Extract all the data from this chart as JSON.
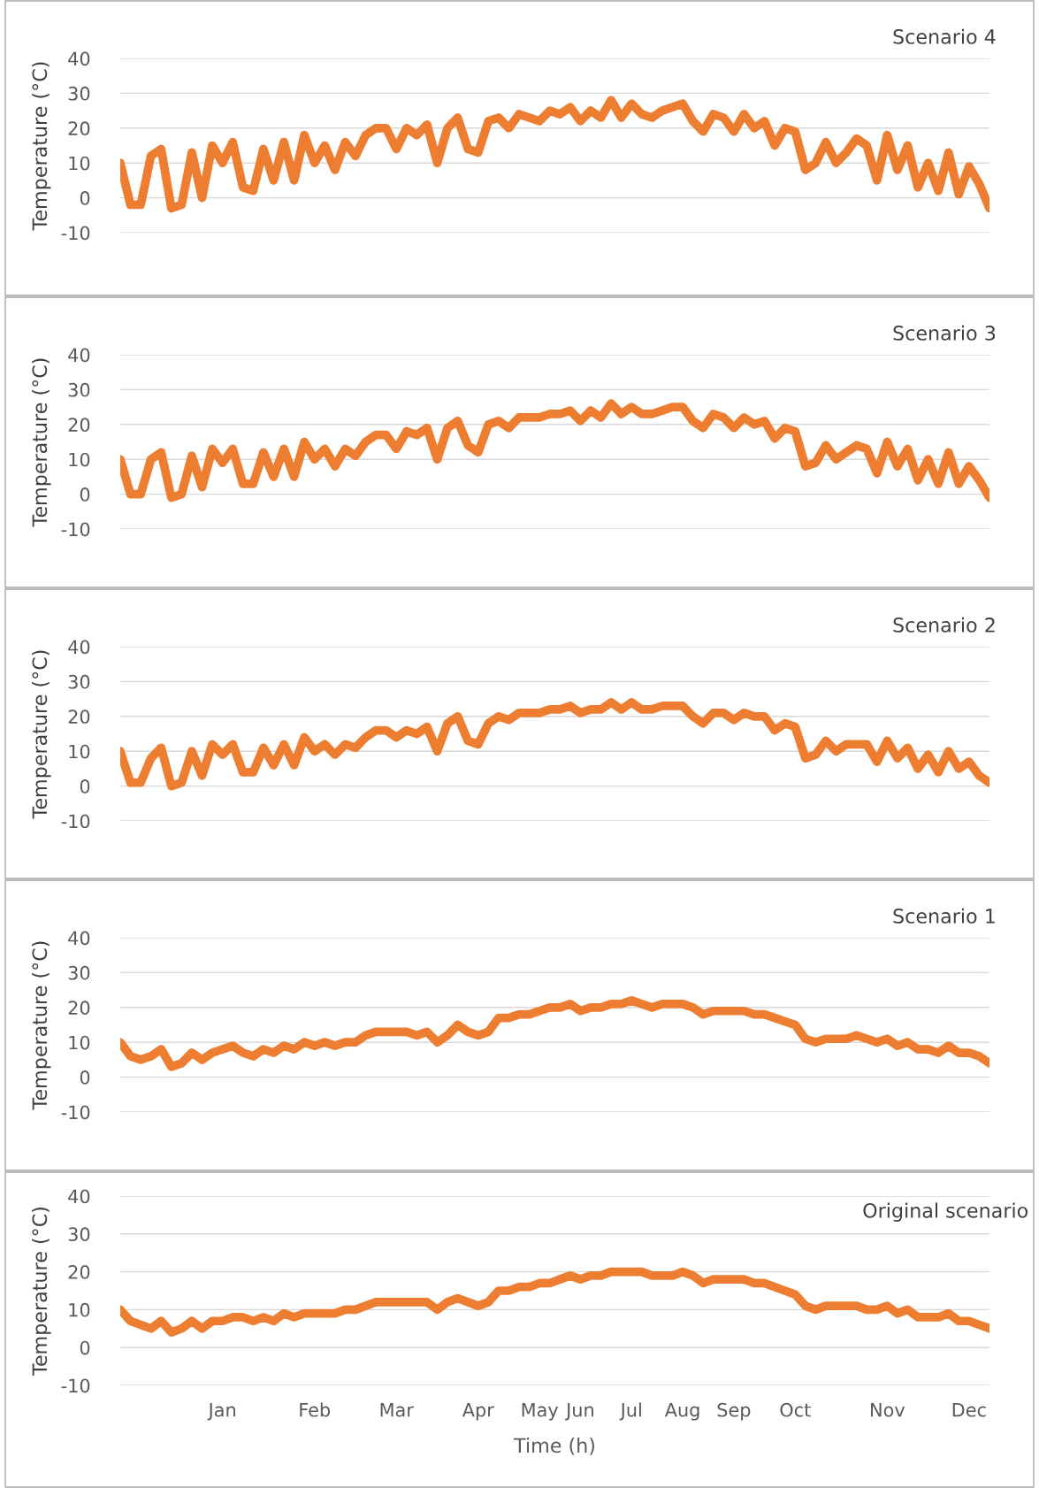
{
  "chart_data": [
    {
      "type": "line",
      "title": "Scenario 4",
      "ylabel": "Temperature (°C)",
      "ylim": [
        -10,
        40
      ],
      "yticks": [
        -10,
        0,
        10,
        20,
        30,
        40
      ],
      "grid": "y",
      "tick_labels": "y",
      "marker": "none",
      "line_style": "solid",
      "categories": [
        null,
        null,
        null,
        null,
        null,
        null,
        null,
        null,
        null,
        null,
        null,
        null,
        null,
        null,
        null,
        null,
        null,
        null,
        null,
        null,
        null,
        null,
        null,
        null,
        null,
        null,
        null,
        null,
        null,
        null,
        null,
        null,
        null,
        null,
        null,
        null,
        null,
        null,
        null,
        null,
        null,
        null,
        null,
        null,
        null,
        null,
        null,
        null,
        null,
        null,
        null,
        null,
        null,
        null,
        null,
        null,
        null,
        null,
        null,
        null,
        null,
        null,
        null,
        null,
        null,
        null,
        null,
        null,
        null,
        null,
        null,
        null,
        null,
        null,
        null,
        null,
        null,
        null,
        null,
        null,
        null,
        null,
        null,
        null,
        null,
        null
      ],
      "series": [
        {
          "color": "#ed7d31",
          "values": [
            10,
            -2,
            -2,
            12,
            14,
            -3,
            -2,
            13,
            0,
            15,
            10,
            16,
            3,
            2,
            14,
            5,
            16,
            5,
            18,
            10,
            15,
            8,
            16,
            12,
            18,
            20,
            20,
            14,
            20,
            18,
            21,
            10,
            20,
            23,
            14,
            13,
            22,
            23,
            20,
            24,
            23,
            22,
            25,
            24,
            26,
            22,
            25,
            23,
            28,
            23,
            27,
            24,
            23,
            25,
            26,
            27,
            22,
            19,
            24,
            23,
            19,
            24,
            20,
            22,
            15,
            20,
            19,
            8,
            10,
            16,
            10,
            13,
            17,
            15,
            5,
            18,
            8,
            15,
            3,
            10,
            2,
            13,
            1,
            9,
            4,
            -3
          ]
        }
      ]
    },
    {
      "type": "line",
      "title": "Scenario 3",
      "ylabel": "Temperature (°C)",
      "ylim": [
        -10,
        40
      ],
      "yticks": [
        -10,
        0,
        10,
        20,
        30,
        40
      ],
      "grid": "y",
      "tick_labels": "y",
      "marker": "none",
      "line_style": "solid",
      "categories": [
        null,
        null,
        null,
        null,
        null,
        null,
        null,
        null,
        null,
        null,
        null,
        null,
        null,
        null,
        null,
        null,
        null,
        null,
        null,
        null,
        null,
        null,
        null,
        null,
        null,
        null,
        null,
        null,
        null,
        null,
        null,
        null,
        null,
        null,
        null,
        null,
        null,
        null,
        null,
        null,
        null,
        null,
        null,
        null,
        null,
        null,
        null,
        null,
        null,
        null,
        null,
        null,
        null,
        null,
        null,
        null,
        null,
        null,
        null,
        null,
        null,
        null,
        null,
        null,
        null,
        null,
        null,
        null,
        null,
        null,
        null,
        null,
        null,
        null,
        null,
        null,
        null,
        null,
        null,
        null,
        null,
        null,
        null,
        null,
        null,
        null
      ],
      "series": [
        {
          "color": "#ed7d31",
          "values": [
            10,
            0,
            0,
            10,
            12,
            -1,
            0,
            11,
            2,
            13,
            9,
            13,
            3,
            3,
            12,
            5,
            13,
            5,
            15,
            10,
            13,
            8,
            13,
            11,
            15,
            17,
            17,
            13,
            18,
            17,
            19,
            10,
            19,
            21,
            14,
            12,
            20,
            21,
            19,
            22,
            22,
            22,
            23,
            23,
            24,
            21,
            24,
            22,
            26,
            23,
            25,
            23,
            23,
            24,
            25,
            25,
            21,
            19,
            23,
            22,
            19,
            22,
            20,
            21,
            16,
            19,
            18,
            8,
            9,
            14,
            10,
            12,
            14,
            13,
            6,
            15,
            8,
            13,
            4,
            10,
            3,
            12,
            3,
            8,
            4,
            -1
          ]
        }
      ]
    },
    {
      "type": "line",
      "title": "Scenario 2",
      "ylabel": "Temperature (°C)",
      "ylim": [
        -10,
        40
      ],
      "yticks": [
        -10,
        0,
        10,
        20,
        30,
        40
      ],
      "grid": "y",
      "tick_labels": "y",
      "marker": "none",
      "line_style": "solid",
      "categories": [
        null,
        null,
        null,
        null,
        null,
        null,
        null,
        null,
        null,
        null,
        null,
        null,
        null,
        null,
        null,
        null,
        null,
        null,
        null,
        null,
        null,
        null,
        null,
        null,
        null,
        null,
        null,
        null,
        null,
        null,
        null,
        null,
        null,
        null,
        null,
        null,
        null,
        null,
        null,
        null,
        null,
        null,
        null,
        null,
        null,
        null,
        null,
        null,
        null,
        null,
        null,
        null,
        null,
        null,
        null,
        null,
        null,
        null,
        null,
        null,
        null,
        null,
        null,
        null,
        null,
        null,
        null,
        null,
        null,
        null,
        null,
        null,
        null,
        null,
        null,
        null,
        null,
        null,
        null,
        null,
        null,
        null,
        null,
        null,
        null,
        null
      ],
      "series": [
        {
          "color": "#ed7d31",
          "values": [
            10,
            1,
            1,
            8,
            11,
            0,
            1,
            10,
            3,
            12,
            9,
            12,
            4,
            4,
            11,
            6,
            12,
            6,
            14,
            10,
            12,
            9,
            12,
            11,
            14,
            16,
            16,
            14,
            16,
            15,
            17,
            10,
            18,
            20,
            13,
            12,
            18,
            20,
            19,
            21,
            21,
            21,
            22,
            22,
            23,
            21,
            22,
            22,
            24,
            22,
            24,
            22,
            22,
            23,
            23,
            23,
            20,
            18,
            21,
            21,
            19,
            21,
            20,
            20,
            16,
            18,
            17,
            8,
            9,
            13,
            10,
            12,
            12,
            12,
            7,
            13,
            8,
            11,
            5,
            9,
            4,
            10,
            5,
            7,
            3,
            1
          ]
        }
      ]
    },
    {
      "type": "line",
      "title": "Scenario 1",
      "ylabel": "Temperature (°C)",
      "ylim": [
        -10,
        40
      ],
      "yticks": [
        -10,
        0,
        10,
        20,
        30,
        40
      ],
      "grid": "y",
      "tick_labels": "y",
      "marker": "none",
      "line_style": "solid",
      "categories": [
        null,
        null,
        null,
        null,
        null,
        null,
        null,
        null,
        null,
        null,
        null,
        null,
        null,
        null,
        null,
        null,
        null,
        null,
        null,
        null,
        null,
        null,
        null,
        null,
        null,
        null,
        null,
        null,
        null,
        null,
        null,
        null,
        null,
        null,
        null,
        null,
        null,
        null,
        null,
        null,
        null,
        null,
        null,
        null,
        null,
        null,
        null,
        null,
        null,
        null,
        null,
        null,
        null,
        null,
        null,
        null,
        null,
        null,
        null,
        null,
        null,
        null,
        null,
        null,
        null,
        null,
        null,
        null,
        null,
        null,
        null,
        null,
        null,
        null,
        null,
        null,
        null,
        null,
        null,
        null,
        null,
        null,
        null,
        null,
        null,
        null
      ],
      "series": [
        {
          "color": "#ed7d31",
          "values": [
            10,
            6,
            5,
            6,
            8,
            3,
            4,
            7,
            5,
            7,
            8,
            9,
            7,
            6,
            8,
            7,
            9,
            8,
            10,
            9,
            10,
            9,
            10,
            10,
            12,
            13,
            13,
            13,
            13,
            12,
            13,
            10,
            12,
            15,
            13,
            12,
            13,
            17,
            17,
            18,
            18,
            19,
            20,
            20,
            21,
            19,
            20,
            20,
            21,
            21,
            22,
            21,
            20,
            21,
            21,
            21,
            20,
            18,
            19,
            19,
            19,
            19,
            18,
            18,
            17,
            16,
            15,
            11,
            10,
            11,
            11,
            11,
            12,
            11,
            10,
            11,
            9,
            10,
            8,
            8,
            7,
            9,
            7,
            7,
            6,
            4
          ]
        }
      ]
    },
    {
      "type": "line",
      "title": "Original scenario",
      "ylabel": "Temperature (°C)",
      "xlabel": "Time (h)",
      "ylim": [
        -10,
        40
      ],
      "yticks": [
        -10,
        0,
        10,
        20,
        30,
        40
      ],
      "grid": "y",
      "marker": "none",
      "line_style": "solid",
      "categories": [
        null,
        null,
        null,
        null,
        null,
        null,
        null,
        null,
        null,
        null,
        "Jan",
        null,
        null,
        null,
        null,
        null,
        null,
        null,
        null,
        "Feb",
        null,
        null,
        null,
        null,
        null,
        null,
        null,
        "Mar",
        null,
        null,
        null,
        null,
        null,
        null,
        null,
        "Apr",
        null,
        null,
        null,
        null,
        null,
        "May",
        null,
        null,
        null,
        "Jun",
        null,
        null,
        null,
        null,
        "Jul",
        null,
        null,
        null,
        null,
        "Aug",
        null,
        null,
        null,
        null,
        "Sep",
        null,
        null,
        null,
        null,
        null,
        "Oct",
        null,
        null,
        null,
        null,
        null,
        null,
        null,
        null,
        "Nov",
        null,
        null,
        null,
        null,
        null,
        null,
        null,
        "Dec",
        null,
        null
      ],
      "series": [
        {
          "color": "#ed7d31",
          "values": [
            10,
            7,
            6,
            5,
            7,
            4,
            5,
            7,
            5,
            7,
            7,
            8,
            8,
            7,
            8,
            7,
            9,
            8,
            9,
            9,
            9,
            9,
            10,
            10,
            11,
            12,
            12,
            12,
            12,
            12,
            12,
            10,
            12,
            13,
            12,
            11,
            12,
            15,
            15,
            16,
            16,
            17,
            17,
            18,
            19,
            18,
            19,
            19,
            20,
            20,
            20,
            20,
            19,
            19,
            19,
            20,
            19,
            17,
            18,
            18,
            18,
            18,
            17,
            17,
            16,
            15,
            14,
            11,
            10,
            11,
            11,
            11,
            11,
            10,
            10,
            11,
            9,
            10,
            8,
            8,
            8,
            9,
            7,
            7,
            6,
            5
          ]
        }
      ]
    }
  ]
}
